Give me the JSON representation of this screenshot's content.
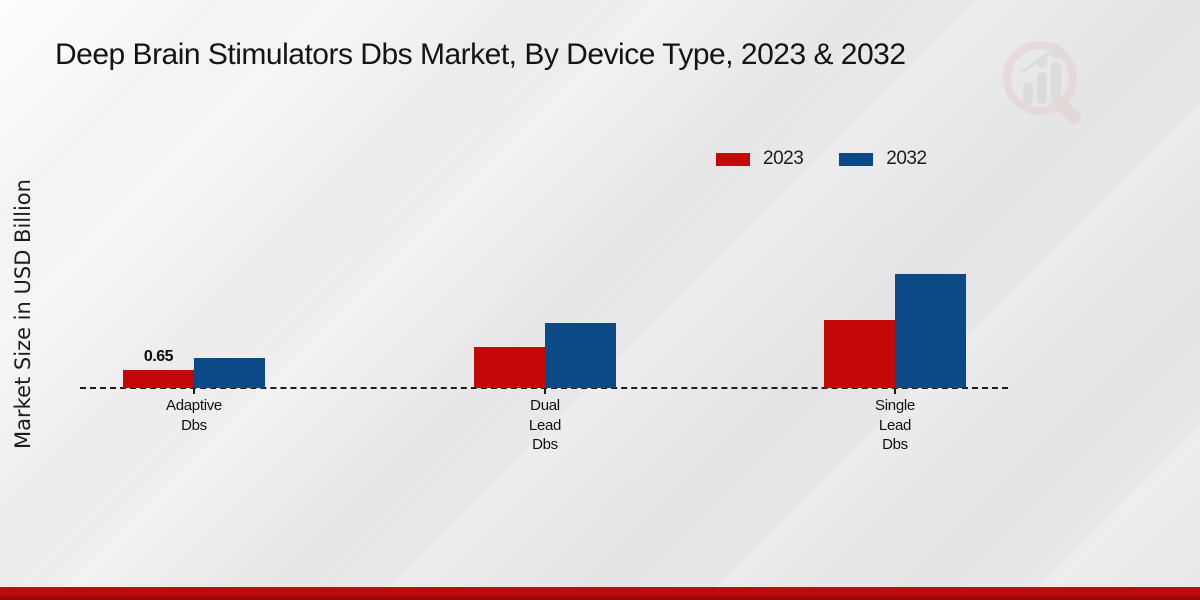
{
  "page": {
    "title": "Deep Brain Stimulators Dbs Market, By Device Type, 2023 & 2032",
    "y_axis_label": "Market Size in USD Billion"
  },
  "legend": {
    "items": [
      {
        "label": "2023",
        "color": "#c40808"
      },
      {
        "label": "2032",
        "color": "#0c4a87"
      }
    ]
  },
  "chart_data": {
    "type": "bar",
    "title": "Deep Brain Stimulators Dbs Market, By Device Type, 2023 & 2032",
    "xlabel": "",
    "ylabel": "Market Size in USD Billion",
    "categories": [
      "Adaptive Dbs",
      "Dual Lead Dbs",
      "Single Lead Dbs"
    ],
    "category_label_lines": [
      [
        "Adaptive",
        "Dbs"
      ],
      [
        "Dual",
        "Lead",
        "Dbs"
      ],
      [
        "Single",
        "Lead",
        "Dbs"
      ]
    ],
    "series": [
      {
        "name": "2023",
        "color": "#c40808",
        "values": [
          0.65,
          1.5,
          2.5
        ]
      },
      {
        "name": "2032",
        "color": "#0c4a87",
        "values": [
          1.1,
          2.4,
          4.2
        ]
      }
    ],
    "data_labels": [
      {
        "series": "2023",
        "category": "Adaptive Dbs",
        "text": "0.65"
      }
    ],
    "ylim": [
      0,
      4.5
    ],
    "grid": false,
    "baseline_style": "dashed",
    "legend_position": "top-right"
  },
  "footer": {
    "accent_color": "#b20a0a"
  }
}
